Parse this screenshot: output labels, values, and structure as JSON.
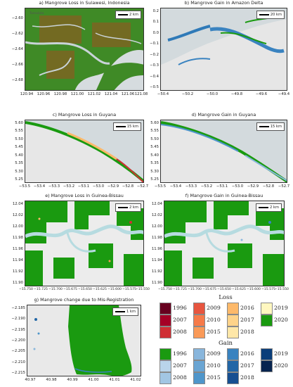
{
  "panels": {
    "a": {
      "title": "a) Mangrove Loss in Sulawesi, Indonesia",
      "scale": "2 km",
      "place": "Tamalata",
      "yticks": [
        "−2.60",
        "−2.62",
        "−2.64",
        "−2.66",
        "−2.68"
      ],
      "xticks": [
        "120.94",
        "120.96",
        "120.98",
        "121.00",
        "121.02",
        "121.04",
        "121.06",
        "121.08"
      ]
    },
    "b": {
      "title": "b) Mangrove Gain in Amazon Delta",
      "scale": "20 km",
      "yticks": [
        "0.2",
        "0.1",
        "0.0",
        "−0.1",
        "−0.2",
        "−0.3",
        "−0.4",
        "−0.5"
      ],
      "xticks": [
        "−50.4",
        "−50.2",
        "−50.0",
        "−49.8",
        "−49.6",
        "−49.4"
      ]
    },
    "c": {
      "title": "c) Mangrove Loss in Guyana",
      "scale": "15 km",
      "yticks": [
        "5.60",
        "5.55",
        "5.50",
        "5.45",
        "5.40",
        "5.35",
        "5.30",
        "5.25"
      ],
      "xticks": [
        "−53.5",
        "−53.4",
        "−53.3",
        "−53.2",
        "−53.1",
        "−53.0",
        "−52.9",
        "−52.8",
        "−52.7"
      ]
    },
    "d": {
      "title": "d) Mangrove Gain in Guyana",
      "scale": "15 km",
      "yticks": [
        "5.60",
        "5.55",
        "5.50",
        "5.45",
        "5.40",
        "5.35",
        "5.30",
        "5.25"
      ],
      "xticks": [
        "−53.5",
        "−53.4",
        "−53.3",
        "−53.2",
        "−53.1",
        "−53.0",
        "−52.9",
        "−52.8",
        "−52.7"
      ]
    },
    "e": {
      "title": "e) Mangrove Loss in Guinea-Bissau",
      "scale": "2 km",
      "yticks": [
        "12.04",
        "12.02",
        "12.00",
        "11.98",
        "11.96",
        "11.94",
        "11.92",
        "11.90"
      ],
      "xticks": [
        "−15.750",
        "−15.725",
        "−15.700",
        "−15.675",
        "−15.650",
        "−15.625",
        "−15.600",
        "−15.575",
        "−15.550"
      ]
    },
    "f": {
      "title": "f) Mangrove Gain in Guinea-Bissau",
      "scale": "2 km",
      "yticks": [
        "12.04",
        "12.02",
        "12.00",
        "11.98",
        "11.96",
        "11.94",
        "11.92",
        "11.90"
      ],
      "xticks": [
        "−15.750",
        "−15.725",
        "−15.700",
        "−15.675",
        "−15.650",
        "−15.625",
        "−15.600",
        "−15.575",
        "−15.550"
      ]
    },
    "g": {
      "title": "g) Mangrove change due to Mis-Registration",
      "scale": "1 km",
      "yticks": [
        "−2.185",
        "−2.190",
        "−2.195",
        "−2.200",
        "−2.205",
        "−2.210",
        "−2.215"
      ],
      "xticks": [
        "40.97",
        "40.98",
        "40.99",
        "41.00",
        "41.01",
        "41.02"
      ]
    }
  },
  "legend": {
    "loss_title": "Loss",
    "gain_title": "Gain",
    "loss": [
      {
        "label": "1996",
        "color": "#67001f"
      },
      {
        "label": "2009",
        "color": "#e7553f"
      },
      {
        "label": "2016",
        "color": "#fdb96a"
      },
      {
        "label": "2019",
        "color": "#fff7c0"
      },
      {
        "label": "2007",
        "color": "#a50026"
      },
      {
        "label": "2010",
        "color": "#f67a49"
      },
      {
        "label": "2017",
        "color": "#fed389"
      },
      {
        "label": "2020",
        "color": "#1a9a10"
      },
      {
        "label": "2008",
        "color": "#cf2f34"
      },
      {
        "label": "2015",
        "color": "#fa9a58"
      },
      {
        "label": "2018",
        "color": "#fee7a8"
      }
    ],
    "gain": [
      {
        "label": "1996",
        "color": "#1a9a10"
      },
      {
        "label": "2009",
        "color": "#89b6dc"
      },
      {
        "label": "2016",
        "color": "#3a83c0"
      },
      {
        "label": "2019",
        "color": "#0b3e7a"
      },
      {
        "label": "2007",
        "color": "#b9d4ea"
      },
      {
        "label": "2010",
        "color": "#6aa5d3"
      },
      {
        "label": "2017",
        "color": "#2266a6"
      },
      {
        "label": "2020",
        "color": "#08244f"
      },
      {
        "label": "2008",
        "color": "#a2c6e3"
      },
      {
        "label": "2015",
        "color": "#4f96cb"
      },
      {
        "label": "2018",
        "color": "#174f91"
      }
    ]
  }
}
